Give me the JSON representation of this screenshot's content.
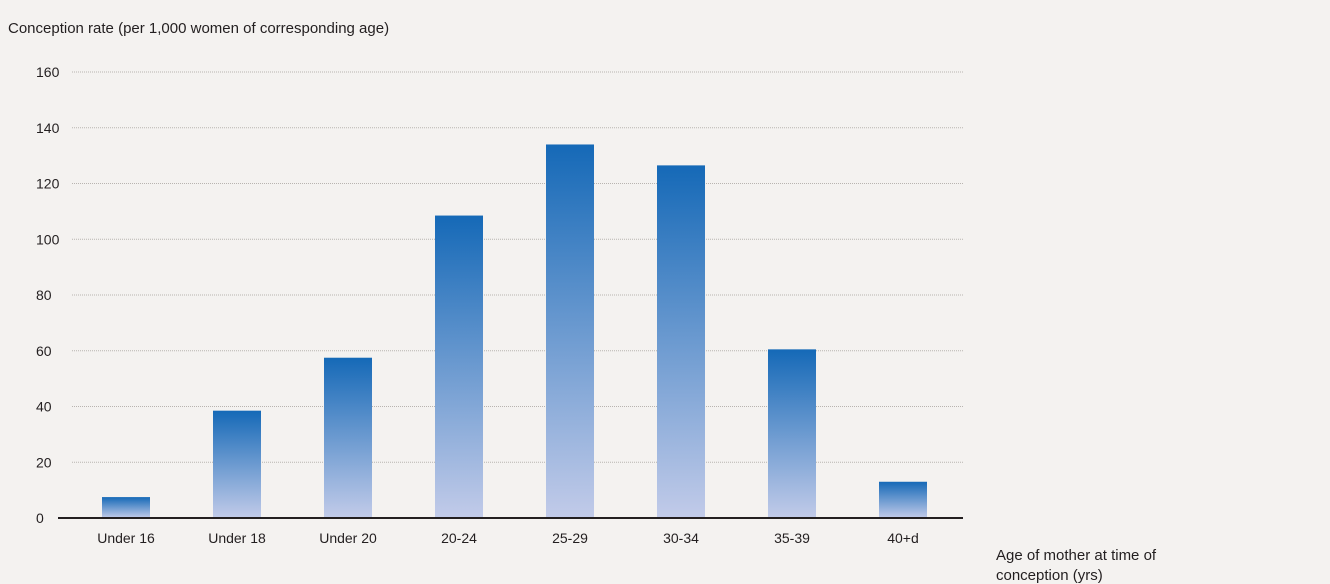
{
  "chart_data": {
    "type": "bar",
    "title": "",
    "ylabel": "Conception rate (per 1,000 women of corresponding age)",
    "xlabel": "Age of mother at time of conception (yrs)",
    "xlabel_lines": [
      "Age of mother at time of",
      "conception (yrs)"
    ],
    "categories": [
      "Under 16",
      "Under 18",
      "Under 20",
      "20-24",
      "25-29",
      "30-34",
      "35-39",
      "40+d"
    ],
    "values": [
      7.5,
      38.5,
      57.5,
      108.5,
      134,
      126.5,
      60.5,
      13
    ],
    "ylim": [
      0,
      160
    ],
    "yticks": [
      "0",
      "20",
      "40",
      "60",
      "80",
      "100",
      "120",
      "140",
      "160"
    ],
    "grid": true,
    "legend": "none",
    "colors": {
      "bar_top": "#1569b7",
      "bar_bottom": "#c2cbe9",
      "grid": "#b8b4b0",
      "axis": "#231f20",
      "background": "#f4f2f0"
    }
  }
}
